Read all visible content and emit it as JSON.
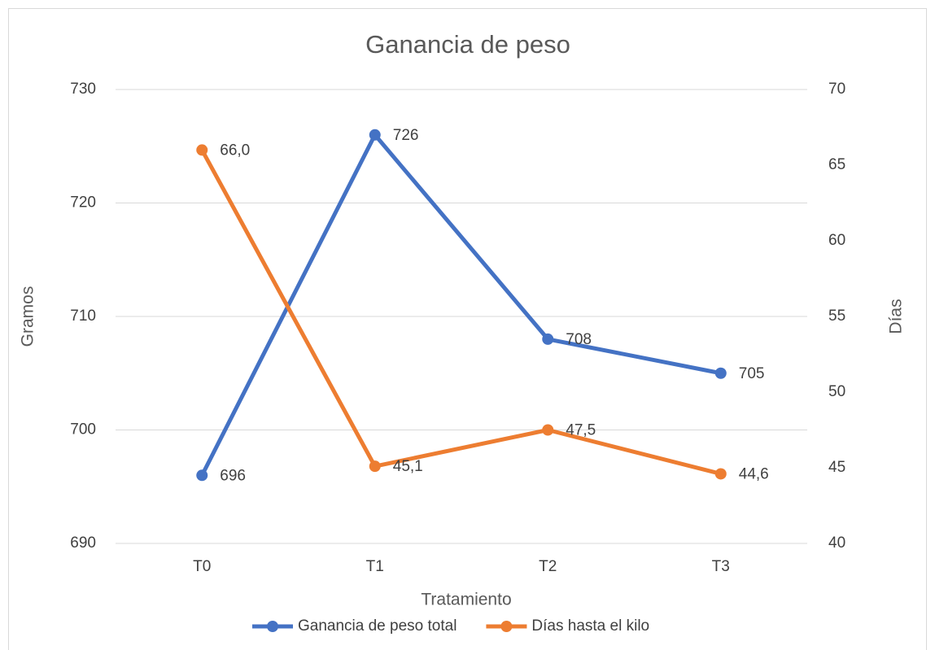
{
  "chart_data": {
    "type": "line",
    "title": "Ganancia de peso",
    "x_label": "Tratamiento",
    "y_label": "Gramos",
    "y2_label": "Días",
    "categories": [
      "T0",
      "T1",
      "T2",
      "T3"
    ],
    "series": [
      {
        "name": "Ganancia de peso total",
        "color": "#4472c4",
        "values": [
          696,
          726,
          708,
          705
        ]
      },
      {
        "name": "Días hasta el kilo",
        "color": "#ed7d31",
        "axis": "y2",
        "values": [
          66.0,
          45.1,
          47.5,
          44.6
        ],
        "value_labels": [
          "66,0",
          "45,1",
          "47,5",
          "44,6"
        ]
      }
    ],
    "ylim": [
      690,
      730
    ],
    "yticks": [
      690,
      700,
      710,
      720,
      730
    ],
    "y2lim": [
      40,
      70
    ],
    "y2ticks": [
      40,
      45,
      50,
      55,
      60,
      65,
      70
    ],
    "grid": true,
    "legend": "bottom"
  }
}
